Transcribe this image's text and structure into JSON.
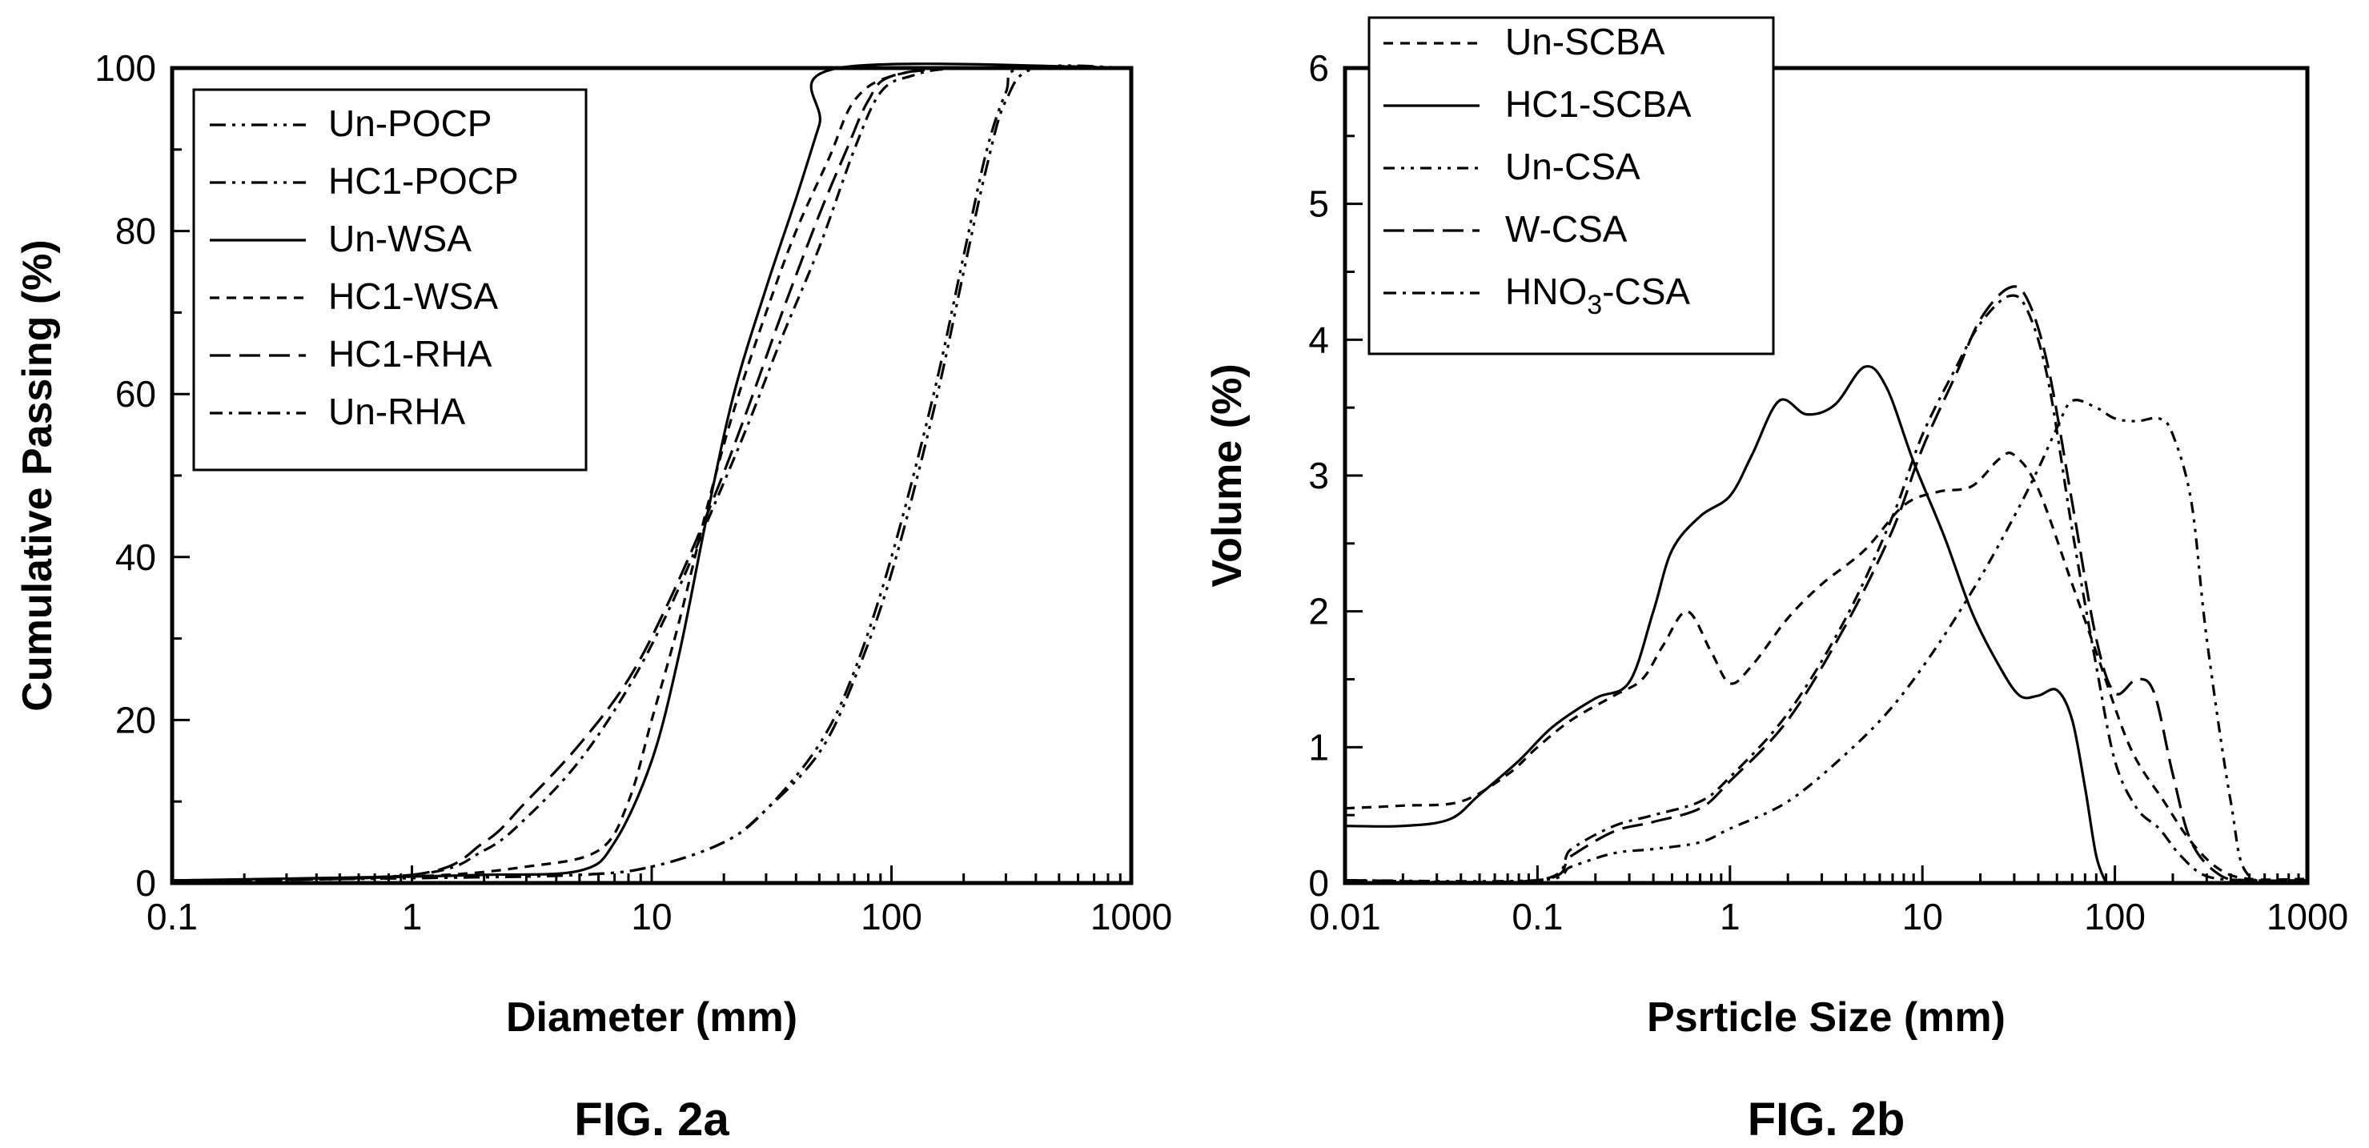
{
  "chart_data": [
    {
      "id": "fig2a",
      "type": "line",
      "caption": "FIG. 2a",
      "title": "",
      "xlabel": "Diameter (mm)",
      "ylabel": "Cumulative Passing (%)",
      "xscale": "log",
      "xlim": [
        0.1,
        1000
      ],
      "ylim": [
        0,
        100
      ],
      "xticks": [
        "0.1",
        "1",
        "10",
        "100",
        "1000"
      ],
      "yticks": [
        "0",
        "20",
        "40",
        "60",
        "80",
        "100"
      ],
      "grid": false,
      "legend_position": "top-left",
      "series": [
        {
          "name": "Un-POCP",
          "dash": "20,8,4,8,4,8",
          "points": [
            [
              0.1,
              0.3
            ],
            [
              1,
              0.6
            ],
            [
              5,
              1.0
            ],
            [
              10,
              2.0
            ],
            [
              20,
              5.0
            ],
            [
              30,
              9.0
            ],
            [
              50,
              16.0
            ],
            [
              70,
              25.0
            ],
            [
              100,
              38.0
            ],
            [
              150,
              58.0
            ],
            [
              200,
              75.0
            ],
            [
              250,
              88.0
            ],
            [
              300,
              96.0
            ],
            [
              400,
              100.0
            ],
            [
              1000,
              100.0
            ]
          ]
        },
        {
          "name": "HC1-POCP",
          "dash": "20,8,4,8,4,8",
          "points": [
            [
              0.1,
              0.3
            ],
            [
              1,
              0.6
            ],
            [
              5,
              1.0
            ],
            [
              10,
              2.0
            ],
            [
              20,
              5.0
            ],
            [
              30,
              9.0
            ],
            [
              50,
              17.0
            ],
            [
              70,
              26.0
            ],
            [
              100,
              40.0
            ],
            [
              150,
              60.0
            ],
            [
              200,
              77.0
            ],
            [
              250,
              90.0
            ],
            [
              300,
              97.0
            ],
            [
              350,
              100.0
            ],
            [
              1000,
              100.0
            ]
          ]
        },
        {
          "name": "Un-WSA",
          "dash": "",
          "points": [
            [
              0.1,
              0.3
            ],
            [
              1,
              0.8
            ],
            [
              2,
              1.0
            ],
            [
              5,
              1.5
            ],
            [
              7,
              5.0
            ],
            [
              10,
              15.0
            ],
            [
              13,
              28.0
            ],
            [
              17,
              45.0
            ],
            [
              22,
              60.0
            ],
            [
              30,
              73.0
            ],
            [
              40,
              84.0
            ],
            [
              50,
              93.0
            ],
            [
              60,
              100.0
            ],
            [
              1000,
              100.0
            ]
          ]
        },
        {
          "name": "HC1-WSA",
          "dash": "12,9",
          "points": [
            [
              0.1,
              0.3
            ],
            [
              1,
              0.8
            ],
            [
              3,
              2.0
            ],
            [
              6,
              4.0
            ],
            [
              8,
              10.0
            ],
            [
              10,
              20.0
            ],
            [
              13,
              32.0
            ],
            [
              17,
              46.0
            ],
            [
              22,
              58.0
            ],
            [
              30,
              70.0
            ],
            [
              40,
              80.0
            ],
            [
              55,
              89.0
            ],
            [
              70,
              96.0
            ],
            [
              100,
              99.0
            ],
            [
              200,
              100.0
            ],
            [
              1000,
              100.0
            ]
          ]
        },
        {
          "name": "HC1-RHA",
          "dash": "26,11",
          "points": [
            [
              0.1,
              0.3
            ],
            [
              1,
              1.0
            ],
            [
              2,
              5.0
            ],
            [
              3,
              10.0
            ],
            [
              5,
              17.0
            ],
            [
              8,
              25.0
            ],
            [
              12,
              35.0
            ],
            [
              18,
              47.0
            ],
            [
              25,
              58.0
            ],
            [
              35,
              70.0
            ],
            [
              50,
              82.0
            ],
            [
              65,
              90.0
            ],
            [
              80,
              96.0
            ],
            [
              100,
              99.0
            ],
            [
              200,
              100.0
            ],
            [
              1000,
              100.0
            ]
          ]
        },
        {
          "name": "Un-RHA",
          "dash": "16,8,4,8",
          "points": [
            [
              0.1,
              0.3
            ],
            [
              1,
              1.0
            ],
            [
              2,
              4.0
            ],
            [
              3,
              8.0
            ],
            [
              5,
              15.0
            ],
            [
              8,
              24.0
            ],
            [
              12,
              34.0
            ],
            [
              18,
              46.0
            ],
            [
              25,
              56.0
            ],
            [
              35,
              67.0
            ],
            [
              50,
              78.0
            ],
            [
              70,
              90.0
            ],
            [
              90,
              97.0
            ],
            [
              120,
              99.0
            ],
            [
              200,
              100.0
            ],
            [
              1000,
              100.0
            ]
          ]
        }
      ]
    },
    {
      "id": "fig2b",
      "type": "line",
      "caption": "FIG. 2b",
      "title": "",
      "xlabel": "Psrticle Size (mm)",
      "ylabel": "Volume (%)",
      "xscale": "log",
      "xlim": [
        0.01,
        1000
      ],
      "ylim": [
        0,
        6
      ],
      "xticks": [
        "0.01",
        "0.1",
        "1",
        "10",
        "100",
        "1000"
      ],
      "yticks": [
        "0",
        "1",
        "2",
        "3",
        "4",
        "5",
        "6"
      ],
      "grid": false,
      "legend_position": "top-left",
      "series": [
        {
          "name": "Un-SCBA",
          "dash": "12,9",
          "points": [
            [
              0.01,
              0.55
            ],
            [
              0.02,
              0.57
            ],
            [
              0.04,
              0.6
            ],
            [
              0.07,
              0.8
            ],
            [
              0.1,
              1.0
            ],
            [
              0.15,
              1.2
            ],
            [
              0.25,
              1.38
            ],
            [
              0.35,
              1.5
            ],
            [
              0.45,
              1.75
            ],
            [
              0.6,
              2.0
            ],
            [
              0.8,
              1.7
            ],
            [
              1.0,
              1.47
            ],
            [
              1.3,
              1.6
            ],
            [
              2,
              1.95
            ],
            [
              3,
              2.2
            ],
            [
              5,
              2.45
            ],
            [
              8,
              2.78
            ],
            [
              12,
              2.88
            ],
            [
              18,
              2.92
            ],
            [
              25,
              3.12
            ],
            [
              30,
              3.15
            ],
            [
              40,
              2.9
            ],
            [
              60,
              2.2
            ],
            [
              80,
              1.7
            ],
            [
              120,
              1.0
            ],
            [
              180,
              0.6
            ],
            [
              250,
              0.3
            ],
            [
              350,
              0.1
            ],
            [
              500,
              0.03
            ],
            [
              1000,
              0.03
            ]
          ]
        },
        {
          "name": "HC1-SCBA",
          "dash": "",
          "points": [
            [
              0.01,
              0.42
            ],
            [
              0.02,
              0.42
            ],
            [
              0.035,
              0.47
            ],
            [
              0.05,
              0.65
            ],
            [
              0.08,
              0.9
            ],
            [
              0.12,
              1.15
            ],
            [
              0.2,
              1.36
            ],
            [
              0.3,
              1.48
            ],
            [
              0.4,
              2.0
            ],
            [
              0.5,
              2.45
            ],
            [
              0.7,
              2.7
            ],
            [
              1.0,
              2.85
            ],
            [
              1.3,
              3.15
            ],
            [
              1.8,
              3.55
            ],
            [
              2.5,
              3.45
            ],
            [
              3.5,
              3.52
            ],
            [
              5,
              3.8
            ],
            [
              6.5,
              3.65
            ],
            [
              9,
              3.1
            ],
            [
              13,
              2.55
            ],
            [
              18,
              2.0
            ],
            [
              25,
              1.6
            ],
            [
              32,
              1.38
            ],
            [
              40,
              1.38
            ],
            [
              50,
              1.42
            ],
            [
              60,
              1.2
            ],
            [
              70,
              0.7
            ],
            [
              80,
              0.2
            ],
            [
              90,
              0.0
            ]
          ]
        },
        {
          "name": "Un-CSA",
          "dash": "14,8,4,8,4,8",
          "points": [
            [
              0.01,
              0.02
            ],
            [
              0.1,
              0.02
            ],
            [
              0.15,
              0.12
            ],
            [
              0.25,
              0.22
            ],
            [
              0.4,
              0.25
            ],
            [
              0.7,
              0.3
            ],
            [
              1,
              0.4
            ],
            [
              2,
              0.6
            ],
            [
              4,
              0.95
            ],
            [
              7,
              1.3
            ],
            [
              12,
              1.75
            ],
            [
              20,
              2.25
            ],
            [
              30,
              2.7
            ],
            [
              40,
              3.05
            ],
            [
              50,
              3.35
            ],
            [
              60,
              3.55
            ],
            [
              80,
              3.5
            ],
            [
              100,
              3.42
            ],
            [
              130,
              3.4
            ],
            [
              170,
              3.42
            ],
            [
              200,
              3.3
            ],
            [
              250,
              2.8
            ],
            [
              300,
              1.8
            ],
            [
              400,
              0.6
            ],
            [
              500,
              0.05
            ],
            [
              1000,
              0.03
            ]
          ]
        },
        {
          "name": "W-CSA",
          "dash": "26,11",
          "points": [
            [
              0.01,
              0.02
            ],
            [
              0.1,
              0.02
            ],
            [
              0.15,
              0.2
            ],
            [
              0.25,
              0.38
            ],
            [
              0.4,
              0.45
            ],
            [
              0.7,
              0.55
            ],
            [
              1,
              0.75
            ],
            [
              2,
              1.2
            ],
            [
              4,
              1.9
            ],
            [
              7,
              2.6
            ],
            [
              10,
              3.2
            ],
            [
              15,
              3.75
            ],
            [
              20,
              4.15
            ],
            [
              28,
              4.38
            ],
            [
              35,
              4.3
            ],
            [
              45,
              3.8
            ],
            [
              60,
              2.8
            ],
            [
              80,
              1.8
            ],
            [
              100,
              1.4
            ],
            [
              130,
              1.5
            ],
            [
              160,
              1.4
            ],
            [
              200,
              0.8
            ],
            [
              250,
              0.3
            ],
            [
              350,
              0.06
            ],
            [
              500,
              0.02
            ],
            [
              1000,
              0.02
            ]
          ]
        },
        {
          "name": "HNO3-CSA",
          "dash": "16,8,4,8",
          "points": [
            [
              0.01,
              0.02
            ],
            [
              0.1,
              0.02
            ],
            [
              0.15,
              0.25
            ],
            [
              0.25,
              0.42
            ],
            [
              0.4,
              0.5
            ],
            [
              0.7,
              0.6
            ],
            [
              1,
              0.78
            ],
            [
              2,
              1.25
            ],
            [
              4,
              1.95
            ],
            [
              7,
              2.7
            ],
            [
              10,
              3.3
            ],
            [
              15,
              3.8
            ],
            [
              20,
              4.12
            ],
            [
              28,
              4.32
            ],
            [
              35,
              4.22
            ],
            [
              45,
              3.7
            ],
            [
              60,
              2.6
            ],
            [
              80,
              1.6
            ],
            [
              100,
              0.9
            ],
            [
              130,
              0.55
            ],
            [
              170,
              0.4
            ],
            [
              220,
              0.2
            ],
            [
              300,
              0.05
            ],
            [
              500,
              0.02
            ],
            [
              1000,
              0.02
            ]
          ]
        }
      ],
      "legend_labels": {
        "Un-SCBA": [
          "Un-SCBA",
          ""
        ],
        "HC1-SCBA": [
          "HC1-SCBA",
          ""
        ],
        "Un-CSA": [
          "Un-CSA",
          ""
        ],
        "W-CSA": [
          "W-CSA",
          ""
        ],
        "HNO3-CSA": [
          "HNO",
          "3",
          "-CSA"
        ]
      }
    }
  ]
}
